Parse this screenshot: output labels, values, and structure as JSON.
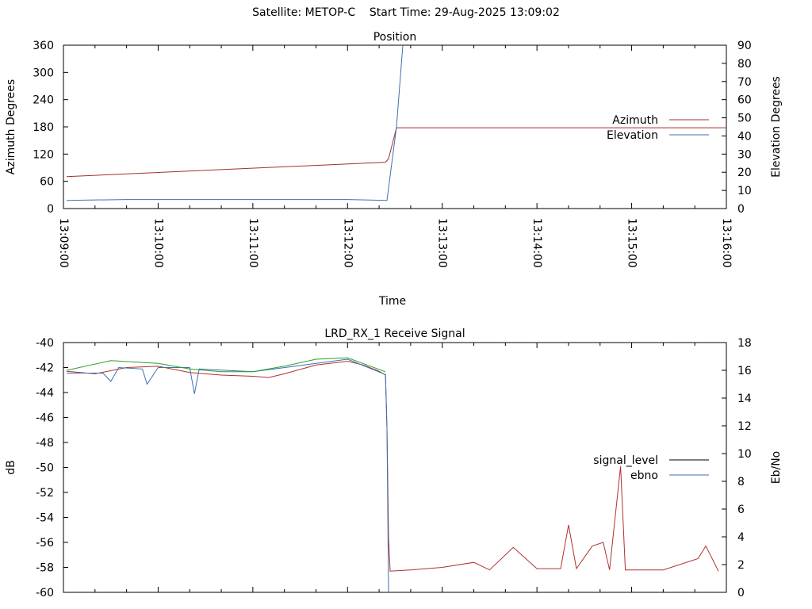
{
  "header": {
    "title": "Satellite: METOP-C    Start Time: 29-Aug-2025 13:09:02"
  },
  "chart_data": [
    {
      "type": "line",
      "title": "Position",
      "xlabel": "Time",
      "ylabel": "Azimuth Degrees",
      "y2label": "Elevation Degrees",
      "xlim": [
        "13:09:00",
        "13:16:00"
      ],
      "ylim": [
        0,
        360
      ],
      "y2lim": [
        0,
        90
      ],
      "x_ticks": [
        "13:09:00",
        "13:10:00",
        "13:11:00",
        "13:12:00",
        "13:13:00",
        "13:14:00",
        "13:15:00",
        "13:16:00"
      ],
      "y_ticks": [
        "0",
        "60",
        "120",
        "180",
        "240",
        "300",
        "360"
      ],
      "y2_ticks": [
        "0",
        "10",
        "20",
        "30",
        "40",
        "50",
        "60",
        "70",
        "80",
        "90"
      ],
      "legend_position": "right",
      "series": [
        {
          "name": "Azimuth",
          "axis": "y",
          "color": "#a0302e",
          "points": [
            [
              "13:09:02",
              70.5
            ],
            [
              "13:12:24",
              102
            ],
            [
              "13:12:26",
              110
            ],
            [
              "13:12:31",
              178
            ],
            [
              "13:16:00",
              178
            ]
          ]
        },
        {
          "name": "Elevation",
          "axis": "y2",
          "color": "#3f6fb0",
          "points": [
            [
              "13:09:02",
              4.5
            ],
            [
              "13:09:40",
              5
            ],
            [
              "13:12:00",
              5
            ],
            [
              "13:12:25",
              4.5
            ],
            [
              "13:12:31",
              45
            ],
            [
              "13:12:35",
              90
            ]
          ]
        }
      ]
    },
    {
      "type": "line",
      "title": "LRD_RX_1 Receive Signal",
      "ylabel": "dB",
      "y2label": "Eb/No",
      "xlim": [
        "13:09:00",
        "13:16:00"
      ],
      "ylim": [
        -60,
        -40
      ],
      "y2lim": [
        0,
        18
      ],
      "y_ticks": [
        "-40",
        "-42",
        "-44",
        "-46",
        "-48",
        "-50",
        "-52",
        "-54",
        "-56",
        "-58",
        "-60"
      ],
      "y2_ticks": [
        "0",
        "2",
        "4",
        "6",
        "8",
        "10",
        "12",
        "14",
        "16",
        "18"
      ],
      "legend_position": "right",
      "series": [
        {
          "name": "signal_level",
          "axis": "y",
          "color": "#b03030",
          "points": [
            [
              "13:09:02",
              -42.3
            ],
            [
              "13:09:20",
              -42.5
            ],
            [
              "13:09:40",
              -42.0
            ],
            [
              "13:10:00",
              -41.9
            ],
            [
              "13:10:20",
              -42.4
            ],
            [
              "13:10:40",
              -42.6
            ],
            [
              "13:11:00",
              -42.7
            ],
            [
              "13:11:10",
              -42.8
            ],
            [
              "13:11:20",
              -42.5
            ],
            [
              "13:11:40",
              -41.8
            ],
            [
              "13:12:00",
              -41.5
            ],
            [
              "13:12:10",
              -41.8
            ],
            [
              "13:12:20",
              -42.3
            ],
            [
              "13:12:24",
              -42.6
            ],
            [
              "13:12:25",
              -46.8
            ],
            [
              "13:12:26",
              -55.6
            ],
            [
              "13:12:27",
              -58.3
            ],
            [
              "13:12:40",
              -58.2
            ],
            [
              "13:13:00",
              -58.0
            ],
            [
              "13:13:20",
              -57.6
            ],
            [
              "13:13:30",
              -58.2
            ],
            [
              "13:13:45",
              -56.4
            ],
            [
              "13:14:00",
              -58.1
            ],
            [
              "13:14:15",
              -58.1
            ],
            [
              "13:14:20",
              -54.6
            ],
            [
              "13:14:25",
              -58.1
            ],
            [
              "13:14:35",
              -56.3
            ],
            [
              "13:14:42",
              -56.0
            ],
            [
              "13:14:46",
              -58.2
            ],
            [
              "13:14:53",
              -49.9
            ],
            [
              "13:14:56",
              -58.2
            ],
            [
              "13:15:20",
              -58.2
            ],
            [
              "13:15:42",
              -57.3
            ],
            [
              "13:15:47",
              -56.3
            ],
            [
              "13:15:55",
              -58.3
            ]
          ]
        },
        {
          "name": "ebno",
          "axis": "y2",
          "color": "#3f6fb0",
          "points": [
            [
              "13:09:02",
              15.8
            ],
            [
              "13:09:25",
              15.8
            ],
            [
              "13:09:30",
              15.2
            ],
            [
              "13:09:35",
              16.2
            ],
            [
              "13:09:50",
              16.1
            ],
            [
              "13:09:53",
              15.0
            ],
            [
              "13:10:00",
              16.2
            ],
            [
              "13:10:20",
              16.2
            ],
            [
              "13:10:23",
              14.3
            ],
            [
              "13:10:26",
              16.1
            ],
            [
              "13:11:00",
              15.9
            ],
            [
              "13:11:40",
              16.5
            ],
            [
              "13:12:00",
              16.8
            ],
            [
              "13:12:24",
              15.7
            ],
            [
              "13:12:25",
              11.8
            ],
            [
              "13:12:26",
              0
            ]
          ]
        },
        {
          "name": "",
          "axis": "y2",
          "color": "#2aa02a",
          "points": [
            [
              "13:09:02",
              16.0
            ],
            [
              "13:09:30",
              16.7
            ],
            [
              "13:10:00",
              16.5
            ],
            [
              "13:10:20",
              16.1
            ],
            [
              "13:10:40",
              15.9
            ],
            [
              "13:11:00",
              15.9
            ],
            [
              "13:11:20",
              16.3
            ],
            [
              "13:11:40",
              16.8
            ],
            [
              "13:12:00",
              16.9
            ],
            [
              "13:12:24",
              15.9
            ]
          ]
        }
      ]
    }
  ]
}
